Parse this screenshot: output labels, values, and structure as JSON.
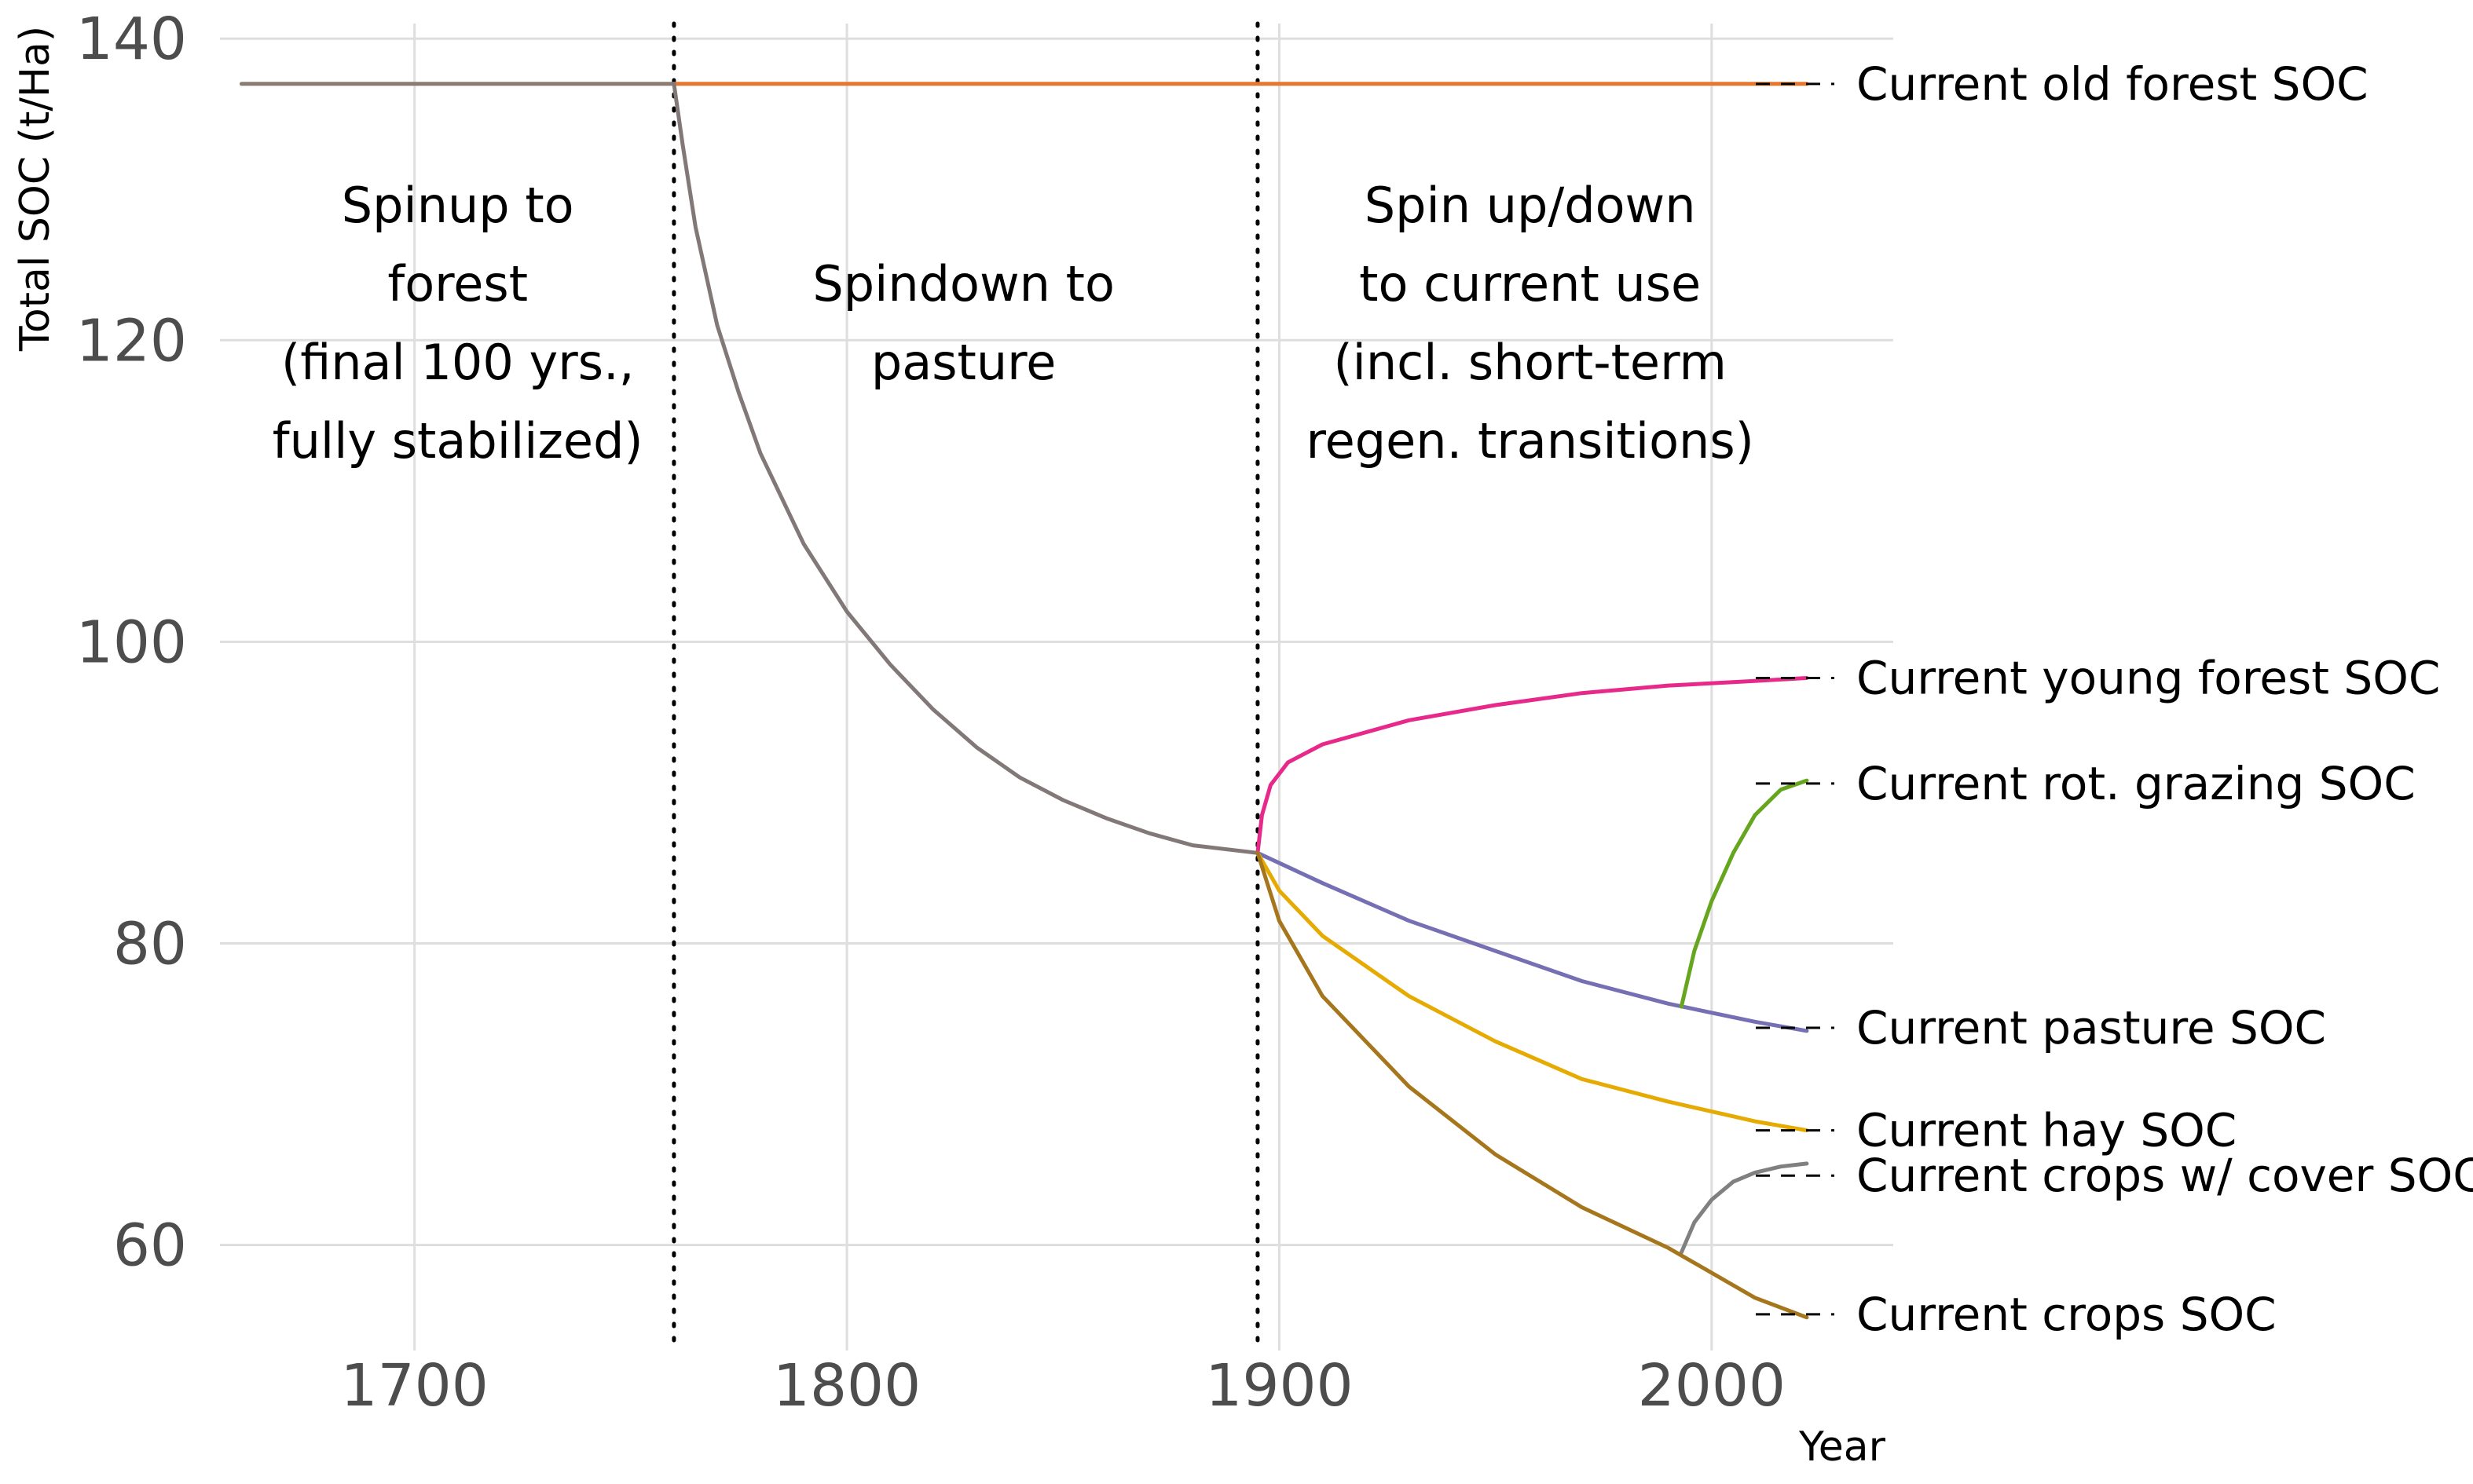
{
  "chart_data": {
    "type": "line",
    "title": "",
    "xlabel": "Year",
    "ylabel": "Total SOC (t/Ha)",
    "xlim": [
      1655,
      2042
    ],
    "ylim": [
      53,
      141
    ],
    "grid": true,
    "xticks": [
      1700,
      1800,
      1900,
      2000
    ],
    "yticks": [
      60,
      80,
      100,
      120,
      140
    ],
    "phase_dividers": [
      1760,
      1895
    ],
    "phases": [
      {
        "x": 1710,
        "lines": [
          "Spinup to",
          "forest",
          "(final 100 yrs.,",
          "fully stabilized)"
        ]
      },
      {
        "x": 1827,
        "lines": [
          "Spindown to",
          "pasture"
        ]
      },
      {
        "x": 1958,
        "lines": [
          "Spin up/down",
          "to current use",
          "(incl. short-term",
          "regen. transitions)"
        ]
      }
    ],
    "series": [
      {
        "name": "Spinup to forest",
        "color": "#8c7b74",
        "points": [
          [
            1660,
            137
          ],
          [
            1760,
            137
          ]
        ]
      },
      {
        "name": "Current old forest SOC",
        "color": "#e8772e",
        "points": [
          [
            1760,
            137
          ],
          [
            2022,
            137
          ]
        ]
      },
      {
        "name": "Spindown to pasture",
        "color": "#827878",
        "points": [
          [
            1760,
            137
          ],
          [
            1762,
            133
          ],
          [
            1765,
            127.5
          ],
          [
            1770,
            121
          ],
          [
            1775,
            116.5
          ],
          [
            1780,
            112.5
          ],
          [
            1790,
            106.5
          ],
          [
            1800,
            102
          ],
          [
            1810,
            98.5
          ],
          [
            1820,
            95.5
          ],
          [
            1830,
            93
          ],
          [
            1840,
            91
          ],
          [
            1850,
            89.5
          ],
          [
            1860,
            88.3
          ],
          [
            1870,
            87.3
          ],
          [
            1880,
            86.5
          ],
          [
            1895,
            86
          ]
        ]
      },
      {
        "name": "Current young forest SOC",
        "color": "#e7298a",
        "points": [
          [
            1895,
            86
          ],
          [
            1896,
            88.5
          ],
          [
            1898,
            90.5
          ],
          [
            1902,
            92
          ],
          [
            1910,
            93.2
          ],
          [
            1930,
            94.8
          ],
          [
            1950,
            95.8
          ],
          [
            1970,
            96.6
          ],
          [
            1990,
            97.1
          ],
          [
            2010,
            97.4
          ],
          [
            2022,
            97.6
          ]
        ]
      },
      {
        "name": "Current pasture SOC",
        "color": "#7570b3",
        "points": [
          [
            1895,
            86
          ],
          [
            1910,
            84
          ],
          [
            1930,
            81.5
          ],
          [
            1950,
            79.5
          ],
          [
            1970,
            77.5
          ],
          [
            1990,
            76
          ],
          [
            2010,
            74.8
          ],
          [
            2022,
            74.2
          ]
        ]
      },
      {
        "name": "Current rot. grazing SOC",
        "color": "#66a61e",
        "points": [
          [
            1993,
            75.8
          ],
          [
            1996,
            79.5
          ],
          [
            2000,
            82.8
          ],
          [
            2005,
            86
          ],
          [
            2010,
            88.5
          ],
          [
            2016,
            90.2
          ],
          [
            2022,
            90.8
          ]
        ]
      },
      {
        "name": "Current hay SOC",
        "color": "#e6ab02",
        "points": [
          [
            1895,
            86
          ],
          [
            1900,
            83.5
          ],
          [
            1910,
            80.5
          ],
          [
            1930,
            76.5
          ],
          [
            1950,
            73.5
          ],
          [
            1970,
            71
          ],
          [
            1990,
            69.5
          ],
          [
            2010,
            68.2
          ],
          [
            2022,
            67.6
          ]
        ]
      },
      {
        "name": "Current crops w/ cover SOC",
        "color": "#808080",
        "points": [
          [
            1993,
            59.5
          ],
          [
            1996,
            61.5
          ],
          [
            2000,
            63
          ],
          [
            2005,
            64.2
          ],
          [
            2010,
            64.8
          ],
          [
            2016,
            65.2
          ],
          [
            2022,
            65.4
          ]
        ]
      },
      {
        "name": "Current crops SOC",
        "color": "#a6761d",
        "points": [
          [
            1895,
            86
          ],
          [
            1900,
            81.5
          ],
          [
            1910,
            76.5
          ],
          [
            1930,
            70.5
          ],
          [
            1950,
            66
          ],
          [
            1970,
            62.5
          ],
          [
            1990,
            59.8
          ],
          [
            2010,
            56.5
          ],
          [
            2022,
            55.2
          ]
        ]
      }
    ],
    "end_labels": [
      {
        "text": "Current old forest SOC",
        "y": 137
      },
      {
        "text": "Current young forest SOC",
        "y": 97.6
      },
      {
        "text": "Current rot. grazing SOC",
        "y": 90.6
      },
      {
        "text": "Current pasture SOC",
        "y": 74.4
      },
      {
        "text": "Current hay SOC",
        "y": 67.6
      },
      {
        "text": "Current crops w/ cover SOC",
        "y": 64.6
      },
      {
        "text": "Current crops SOC",
        "y": 55.4
      }
    ]
  }
}
